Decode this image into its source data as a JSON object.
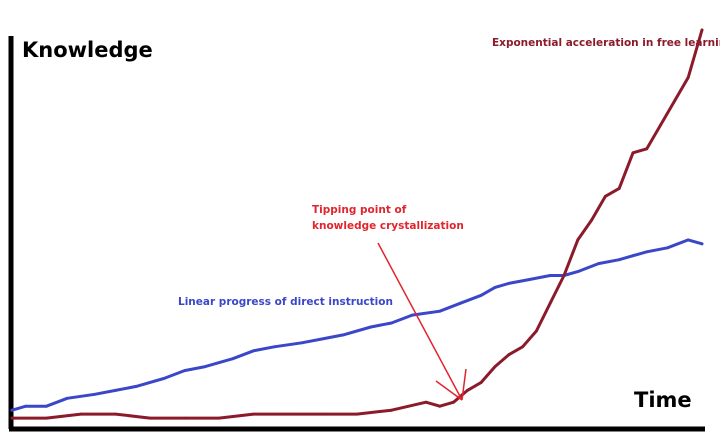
{
  "chart_data": {
    "type": "line",
    "title": "",
    "xlabel": "Time",
    "ylabel": "Knowledge",
    "xlim": [
      0,
      100
    ],
    "ylim": [
      0,
      100
    ],
    "grid": false,
    "legend": "none",
    "series": [
      {
        "key": "linear",
        "color": "#3a47c8",
        "x": [
          0,
          2,
          5,
          8,
          12,
          15,
          18,
          22,
          25,
          28,
          32,
          35,
          38,
          42,
          45,
          48,
          52,
          55,
          58,
          62,
          65,
          68,
          70,
          72,
          75,
          78,
          80,
          82,
          85,
          88,
          90,
          92,
          95,
          98,
          100
        ],
        "values": [
          4,
          5,
          5,
          7,
          8,
          9,
          10,
          12,
          14,
          15,
          17,
          19,
          20,
          21,
          22,
          23,
          25,
          26,
          28,
          29,
          31,
          33,
          35,
          36,
          37,
          38,
          38,
          39,
          41,
          42,
          43,
          44,
          45,
          47,
          46
        ]
      },
      {
        "key": "exponential",
        "color": "#8b1a2b",
        "x": [
          0,
          5,
          10,
          15,
          20,
          25,
          30,
          35,
          40,
          45,
          50,
          55,
          60,
          62,
          64,
          66,
          68,
          70,
          72,
          74,
          76,
          78,
          80,
          82,
          84,
          86,
          88,
          90,
          92,
          94,
          96,
          98,
          100
        ],
        "values": [
          2,
          2,
          3,
          3,
          2,
          2,
          2,
          3,
          3,
          3,
          3,
          4,
          6,
          5,
          6,
          9,
          11,
          15,
          18,
          20,
          24,
          31,
          38,
          47,
          52,
          58,
          60,
          69,
          70,
          76,
          82,
          88,
          100
        ]
      }
    ],
    "annotations": {
      "linear_label": "Linear progress of direct instruction",
      "exp_label": "Exponential acceleration in free learning",
      "tipping_label_1": "Tipping point of",
      "tipping_label_2": "knowledge crystallization"
    },
    "colors": {
      "axis": "#000000",
      "annotation_tipping": "#e0252f"
    }
  }
}
